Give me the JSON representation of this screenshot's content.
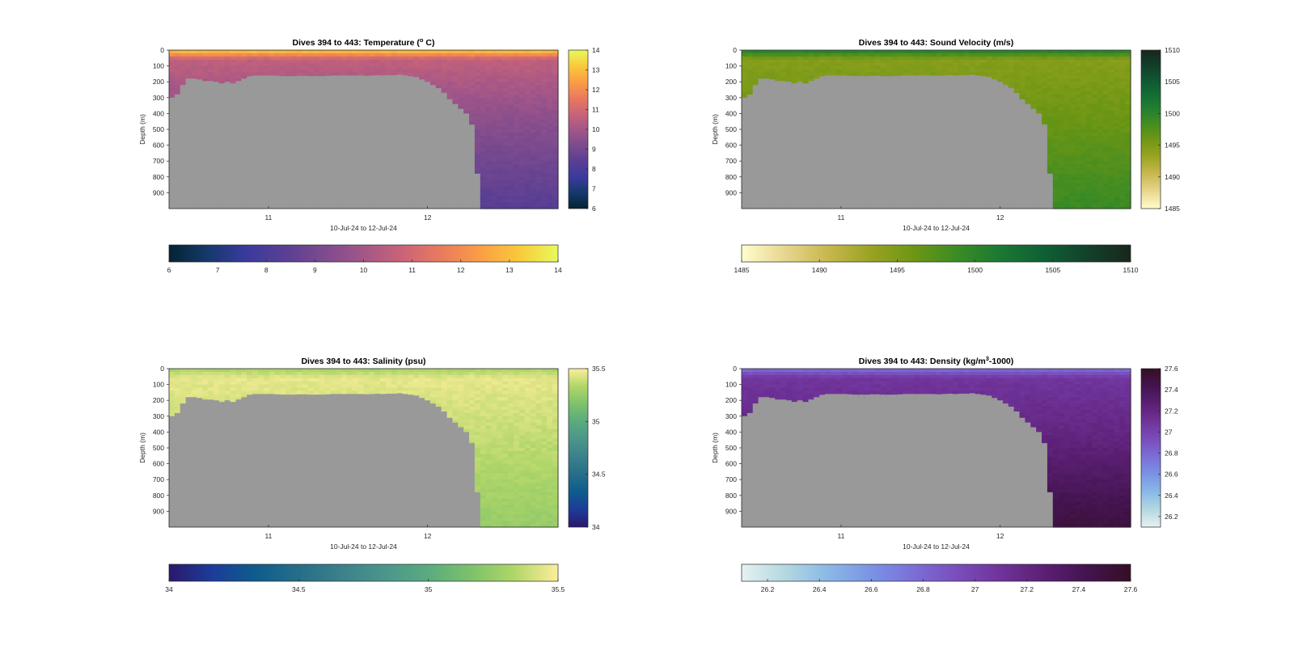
{
  "figure": {
    "background": "#ffffff",
    "seafloor_color": "#999999"
  },
  "chart_data": [
    {
      "type": "heatmap",
      "title_main": "Dives 394 to 443: Temperature (",
      "title_sup": "o",
      "title_end": " C)",
      "ylabel": "Depth (m)",
      "xlabel": "10-Jul-24 to 12-Jul-24",
      "xlim": [
        10.375,
        12.82
      ],
      "xticks": [
        11,
        12
      ],
      "ylim": [
        1000,
        0
      ],
      "yticks": [
        0,
        100,
        200,
        300,
        400,
        500,
        600,
        700,
        800,
        900
      ],
      "colormap": "thermal",
      "clim": [
        6,
        14
      ],
      "vertical_colorbar_ticks": [
        6,
        7,
        8,
        9,
        10,
        11,
        12,
        13,
        14
      ],
      "horizontal_colorbar_ticks": [
        6,
        7,
        8,
        9,
        10,
        11,
        12,
        13,
        14
      ],
      "surface_value": 13.3,
      "mid_value": 10.6,
      "deep_value": 9.6,
      "bottom_value": 8.3
    },
    {
      "type": "heatmap",
      "title_main": "Dives 394 to 443: Sound Velocity (m/s)",
      "title_sup": "",
      "title_end": "",
      "ylabel": "Depth (m)",
      "xlabel": "10-Jul-24 to 12-Jul-24",
      "xlim": [
        10.375,
        12.82
      ],
      "xticks": [
        11,
        12
      ],
      "ylim": [
        1000,
        0
      ],
      "yticks": [
        0,
        100,
        200,
        300,
        400,
        500,
        600,
        700,
        800,
        900
      ],
      "colormap": "speed",
      "clim": [
        1485,
        1510
      ],
      "vertical_colorbar_ticks": [
        1485,
        1490,
        1495,
        1500,
        1505,
        1510
      ],
      "horizontal_colorbar_ticks": [
        1485,
        1490,
        1495,
        1500,
        1505,
        1510
      ],
      "surface_value": 1501,
      "mid_value": 1494.5,
      "deep_value": 1496,
      "bottom_value": 1499
    },
    {
      "type": "heatmap",
      "title_main": "Dives 394 to 443: Salinity (psu)",
      "title_sup": "",
      "title_end": "",
      "ylabel": "Depth (m)",
      "xlabel": "10-Jul-24 to 12-Jul-24",
      "xlim": [
        10.375,
        12.82
      ],
      "xticks": [
        11,
        12
      ],
      "ylim": [
        1000,
        0
      ],
      "yticks": [
        0,
        100,
        200,
        300,
        400,
        500,
        600,
        700,
        800,
        900
      ],
      "colormap": "haline",
      "clim": [
        34,
        35.5
      ],
      "vertical_colorbar_ticks": [
        34,
        34.5,
        35,
        35.5
      ],
      "horizontal_colorbar_ticks": [
        34,
        34.5,
        35,
        35.5
      ],
      "surface_value": 35.3,
      "mid_value": 35.45,
      "deep_value": 35.38,
      "bottom_value": 35.25
    },
    {
      "type": "heatmap",
      "title_main": "Dives 394 to 443: Density (kg/m",
      "title_sup": "3",
      "title_end": "-1000)",
      "ylabel": "Depth (m)",
      "xlabel": "10-Jul-24 to 12-Jul-24",
      "xlim": [
        10.375,
        12.82
      ],
      "xticks": [
        11,
        12
      ],
      "ylim": [
        1000,
        0
      ],
      "yticks": [
        0,
        100,
        200,
        300,
        400,
        500,
        600,
        700,
        800,
        900
      ],
      "colormap": "dense",
      "clim": [
        26.1,
        27.6
      ],
      "vertical_colorbar_ticks": [
        26.2,
        26.4,
        26.6,
        26.8,
        27,
        27.2,
        27.4,
        27.6
      ],
      "horizontal_colorbar_ticks": [
        26.2,
        26.4,
        26.6,
        26.8,
        27,
        27.2,
        27.4,
        27.6
      ],
      "surface_value": 26.75,
      "mid_value": 27.08,
      "deep_value": 27.2,
      "bottom_value": 27.5
    }
  ]
}
